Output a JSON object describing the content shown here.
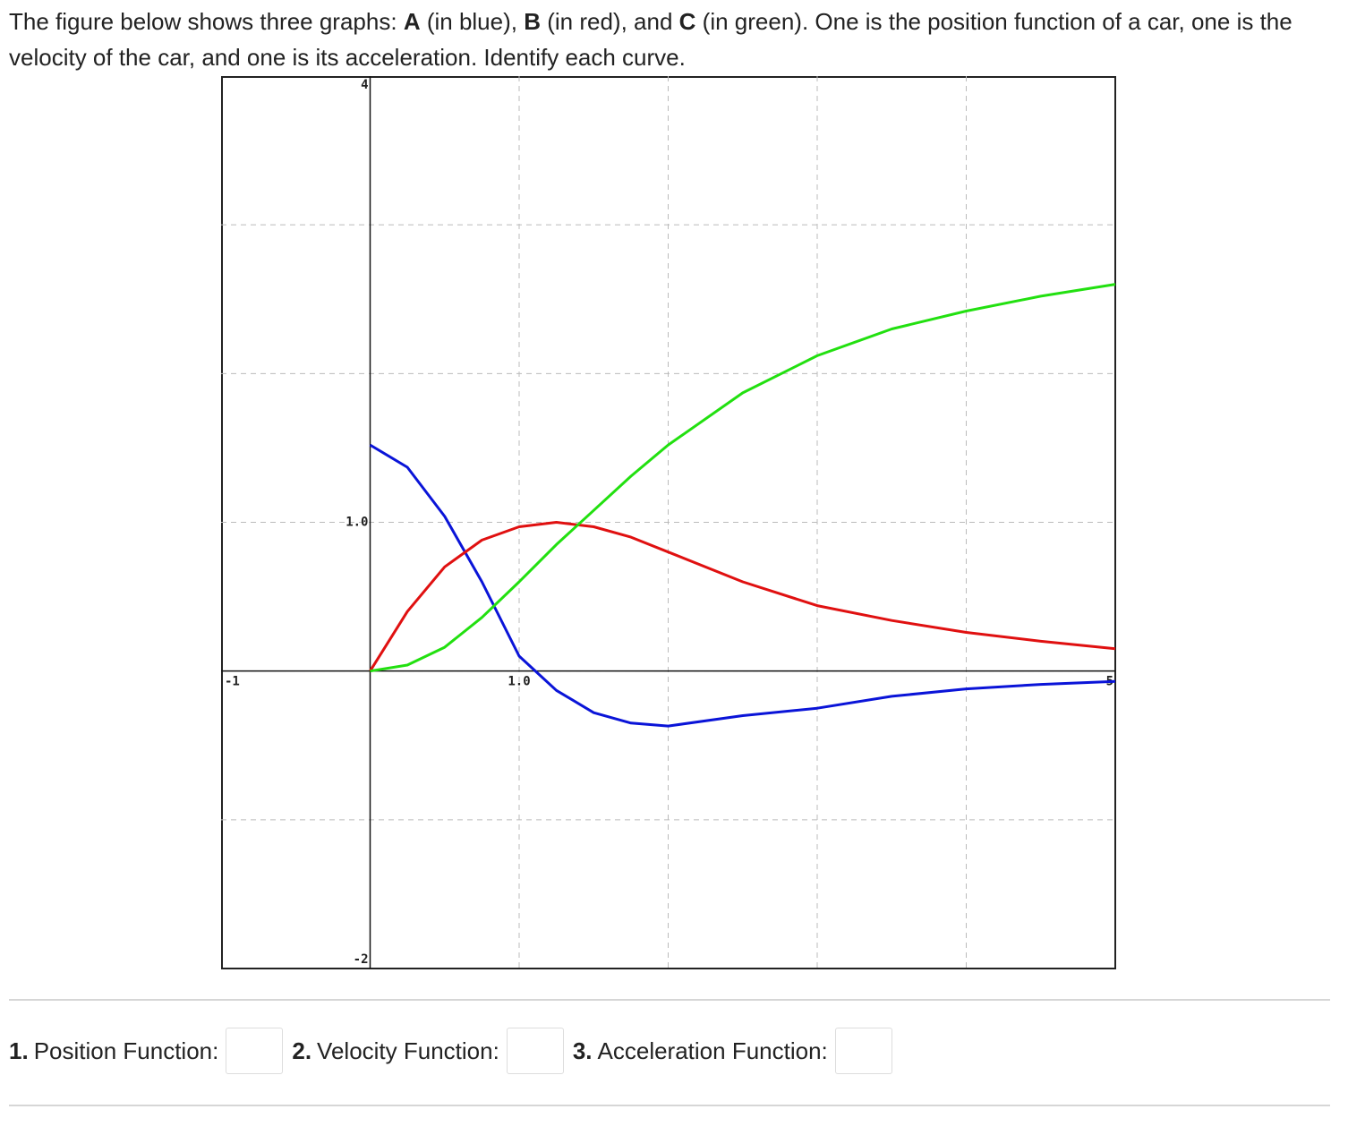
{
  "question": {
    "intro": "The figure below shows three graphs:",
    "after_a": "(in blue),",
    "after_b": "(in red), and",
    "after_c": "(in green). One is the position function of a car, one is the velocity of the car, and one is its acceleration. Identify each curve."
  },
  "chart_data": {
    "type": "line",
    "x": [
      0,
      0.25,
      0.5,
      0.75,
      1,
      1.25,
      1.5,
      1.75,
      2,
      2.5,
      3,
      3.5,
      4,
      4.5,
      5
    ],
    "series": [
      {
        "name": "A",
        "color": "#0a14d8",
        "values": [
          1.52,
          1.37,
          1.04,
          0.6,
          0.1,
          -0.13,
          -0.28,
          -0.35,
          -0.37,
          -0.3,
          -0.25,
          -0.17,
          -0.12,
          -0.09,
          -0.07
        ]
      },
      {
        "name": "B",
        "color": "#e01010",
        "values": [
          0,
          0.4,
          0.7,
          0.88,
          0.97,
          1.0,
          0.97,
          0.9,
          0.8,
          0.6,
          0.44,
          0.34,
          0.26,
          0.2,
          0.15
        ]
      },
      {
        "name": "C",
        "color": "#22e010",
        "values": [
          0,
          0.04,
          0.16,
          0.36,
          0.6,
          0.85,
          1.08,
          1.31,
          1.52,
          1.87,
          2.12,
          2.3,
          2.42,
          2.52,
          2.6
        ]
      }
    ],
    "xlim": [
      -1,
      5
    ],
    "ylim": [
      -2,
      4
    ],
    "xticks": [
      -1,
      {
        "value": 1,
        "label": "1.0"
      },
      5
    ],
    "yticks": [
      -2,
      {
        "value": 1,
        "label": "1.0"
      },
      4
    ],
    "xgrid": [
      0,
      1,
      2,
      3,
      4
    ],
    "ygrid": [
      -1,
      0,
      1,
      2,
      3
    ],
    "grid": true
  },
  "answers": [
    {
      "number": "1.",
      "label": "Position Function:"
    },
    {
      "number": "2.",
      "label": "Velocity Function:"
    },
    {
      "number": "3.",
      "label": "Acceleration Function:"
    }
  ]
}
